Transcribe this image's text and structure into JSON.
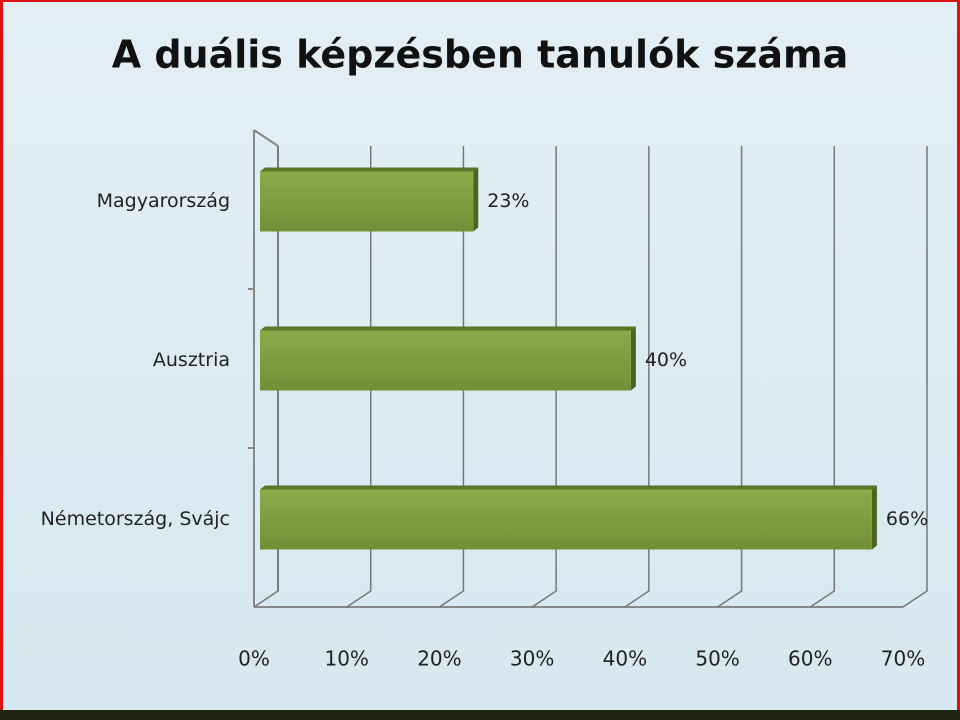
{
  "chart_data": {
    "type": "bar",
    "orientation": "horizontal",
    "title": "A duális képzésben tanulók száma",
    "categories": [
      "Magyarország",
      "Ausztria",
      "Németország, Svájc"
    ],
    "values": [
      23,
      40,
      66
    ],
    "value_labels": [
      "23%",
      "40%",
      "66%"
    ],
    "color": "#7f9f3f",
    "xlim": [
      0,
      70
    ],
    "xticks": [
      {
        "value": 0,
        "label": "0%"
      },
      {
        "value": 10,
        "label": "10%"
      },
      {
        "value": 20,
        "label": "20%"
      },
      {
        "value": 30,
        "label": "30%"
      },
      {
        "value": 40,
        "label": "40%"
      },
      {
        "value": 50,
        "label": "50%"
      },
      {
        "value": 60,
        "label": "60%"
      },
      {
        "value": 70,
        "label": "70%"
      }
    ],
    "grid": true
  }
}
